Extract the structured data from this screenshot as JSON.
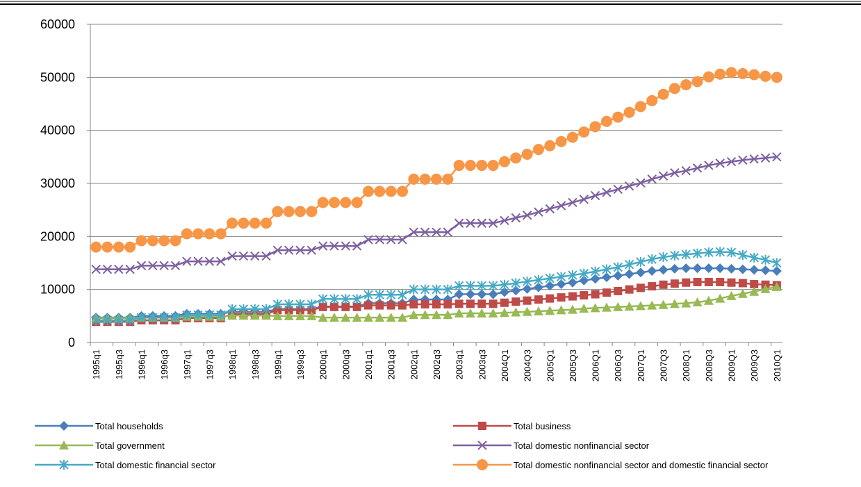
{
  "chart_data": {
    "type": "line",
    "categories": [
      "1995q1",
      null,
      "1995q3",
      null,
      "1996q1",
      null,
      "1996q3",
      null,
      "1997q1",
      null,
      "1997q3",
      null,
      "1998q1",
      null,
      "1998q3",
      null,
      "1999q1",
      null,
      "1999q3",
      null,
      "2000q1",
      null,
      "2000q3",
      null,
      "2001q1",
      null,
      "2001q3",
      null,
      "2002q1",
      null,
      "2002q3",
      null,
      "2003q1",
      null,
      "2003q3",
      null,
      "2004Q1",
      null,
      "2004Q3",
      null,
      "2005Q1",
      null,
      "2005Q3",
      null,
      "2006Q1",
      null,
      "2006Q3",
      null,
      "2007Q1",
      null,
      "2007Q3",
      null,
      "2008Q1",
      null,
      "2008Q3",
      null,
      "2009Q1",
      null,
      "2009Q3",
      null,
      "2010Q1"
    ],
    "ylim": [
      0,
      60000
    ],
    "yticks": [
      0,
      10000,
      20000,
      30000,
      40000,
      50000,
      60000
    ],
    "grid": true,
    "legend": "bottom",
    "series": [
      {
        "name": "Total households",
        "color": "#4a7ebb",
        "marker": "diamond",
        "values": [
          4700,
          4700,
          4700,
          4700,
          5000,
          5000,
          5000,
          5000,
          5400,
          5400,
          5400,
          5400,
          5800,
          5800,
          5800,
          5800,
          6300,
          6300,
          6300,
          6300,
          6800,
          6800,
          6800,
          6800,
          7400,
          7400,
          7400,
          7400,
          8100,
          8100,
          8100,
          8100,
          9100,
          9100,
          9100,
          9100,
          9500,
          9800,
          10100,
          10400,
          10700,
          11000,
          11300,
          11700,
          12000,
          12300,
          12600,
          12900,
          13200,
          13500,
          13700,
          13900,
          14000,
          14000,
          14000,
          14000,
          13900,
          13800,
          13700,
          13600,
          13500
        ]
      },
      {
        "name": "Total business",
        "color": "#be4b48",
        "marker": "square",
        "values": [
          3900,
          3900,
          3900,
          3900,
          4200,
          4200,
          4200,
          4200,
          4600,
          4600,
          4600,
          4600,
          5400,
          5400,
          5400,
          5400,
          6100,
          6100,
          6100,
          6100,
          6700,
          6700,
          6700,
          6700,
          7000,
          7000,
          7000,
          7000,
          7200,
          7200,
          7200,
          7200,
          7300,
          7300,
          7300,
          7300,
          7500,
          7700,
          7900,
          8100,
          8300,
          8500,
          8700,
          8900,
          9100,
          9400,
          9700,
          10000,
          10300,
          10600,
          10900,
          11100,
          11300,
          11400,
          11400,
          11400,
          11300,
          11200,
          11000,
          10900,
          10800
        ]
      },
      {
        "name": "Total government",
        "color": "#98b954",
        "marker": "triangle",
        "values": [
          4600,
          4600,
          4600,
          4600,
          4700,
          4700,
          4700,
          4700,
          4900,
          4900,
          4900,
          4900,
          5100,
          5100,
          5100,
          5100,
          5000,
          5000,
          5000,
          5000,
          4700,
          4700,
          4700,
          4700,
          4700,
          4700,
          4700,
          4700,
          5200,
          5200,
          5200,
          5200,
          5500,
          5500,
          5500,
          5500,
          5600,
          5700,
          5800,
          5900,
          6000,
          6100,
          6200,
          6400,
          6500,
          6600,
          6700,
          6800,
          6900,
          7000,
          7100,
          7300,
          7400,
          7600,
          7900,
          8300,
          8800,
          9200,
          9600,
          10100,
          10500
        ]
      },
      {
        "name": "Total domestic nonfinancial sector",
        "color": "#7d60a0",
        "marker": "x",
        "values": [
          13800,
          13800,
          13800,
          13800,
          14500,
          14500,
          14500,
          14500,
          15300,
          15300,
          15300,
          15300,
          16300,
          16300,
          16300,
          16300,
          17400,
          17400,
          17400,
          17400,
          18200,
          18200,
          18200,
          18200,
          19400,
          19400,
          19400,
          19400,
          20800,
          20800,
          20800,
          20800,
          22500,
          22500,
          22500,
          22500,
          23000,
          23500,
          24000,
          24600,
          25200,
          25800,
          26400,
          27000,
          27700,
          28300,
          28900,
          29500,
          30100,
          30800,
          31400,
          32000,
          32400,
          32900,
          33400,
          33800,
          34100,
          34400,
          34600,
          34800,
          35000
        ]
      },
      {
        "name": "Total domestic financial sector",
        "color": "#46aac5",
        "marker": "star",
        "values": [
          4200,
          4200,
          4200,
          4200,
          4700,
          4700,
          4700,
          4700,
          5200,
          5200,
          5200,
          5200,
          6300,
          6300,
          6300,
          6300,
          7200,
          7200,
          7200,
          7200,
          8200,
          8200,
          8200,
          8200,
          9000,
          9000,
          9000,
          9000,
          10000,
          10000,
          10000,
          10000,
          10700,
          10700,
          10700,
          10700,
          10900,
          11200,
          11500,
          11800,
          12100,
          12400,
          12700,
          13000,
          13400,
          13800,
          14200,
          14700,
          15200,
          15700,
          16100,
          16400,
          16600,
          16800,
          17000,
          17100,
          17000,
          16500,
          16000,
          15600,
          15000
        ]
      },
      {
        "name": "Total domestic nonfinancial sector and domestic financial sector",
        "color": "#f79646",
        "marker": "circle",
        "values": [
          18000,
          18000,
          18000,
          18000,
          19200,
          19200,
          19200,
          19200,
          20500,
          20500,
          20500,
          20500,
          22500,
          22500,
          22500,
          22500,
          24700,
          24700,
          24700,
          24700,
          26400,
          26400,
          26400,
          26400,
          28500,
          28500,
          28500,
          28500,
          30800,
          30800,
          30800,
          30800,
          33400,
          33400,
          33400,
          33400,
          34100,
          34800,
          35500,
          36400,
          37100,
          37900,
          38700,
          39700,
          40700,
          41700,
          42500,
          43400,
          44500,
          45600,
          46800,
          47900,
          48600,
          49200,
          50100,
          50600,
          50900,
          50700,
          50500,
          50200,
          50000
        ]
      }
    ]
  }
}
